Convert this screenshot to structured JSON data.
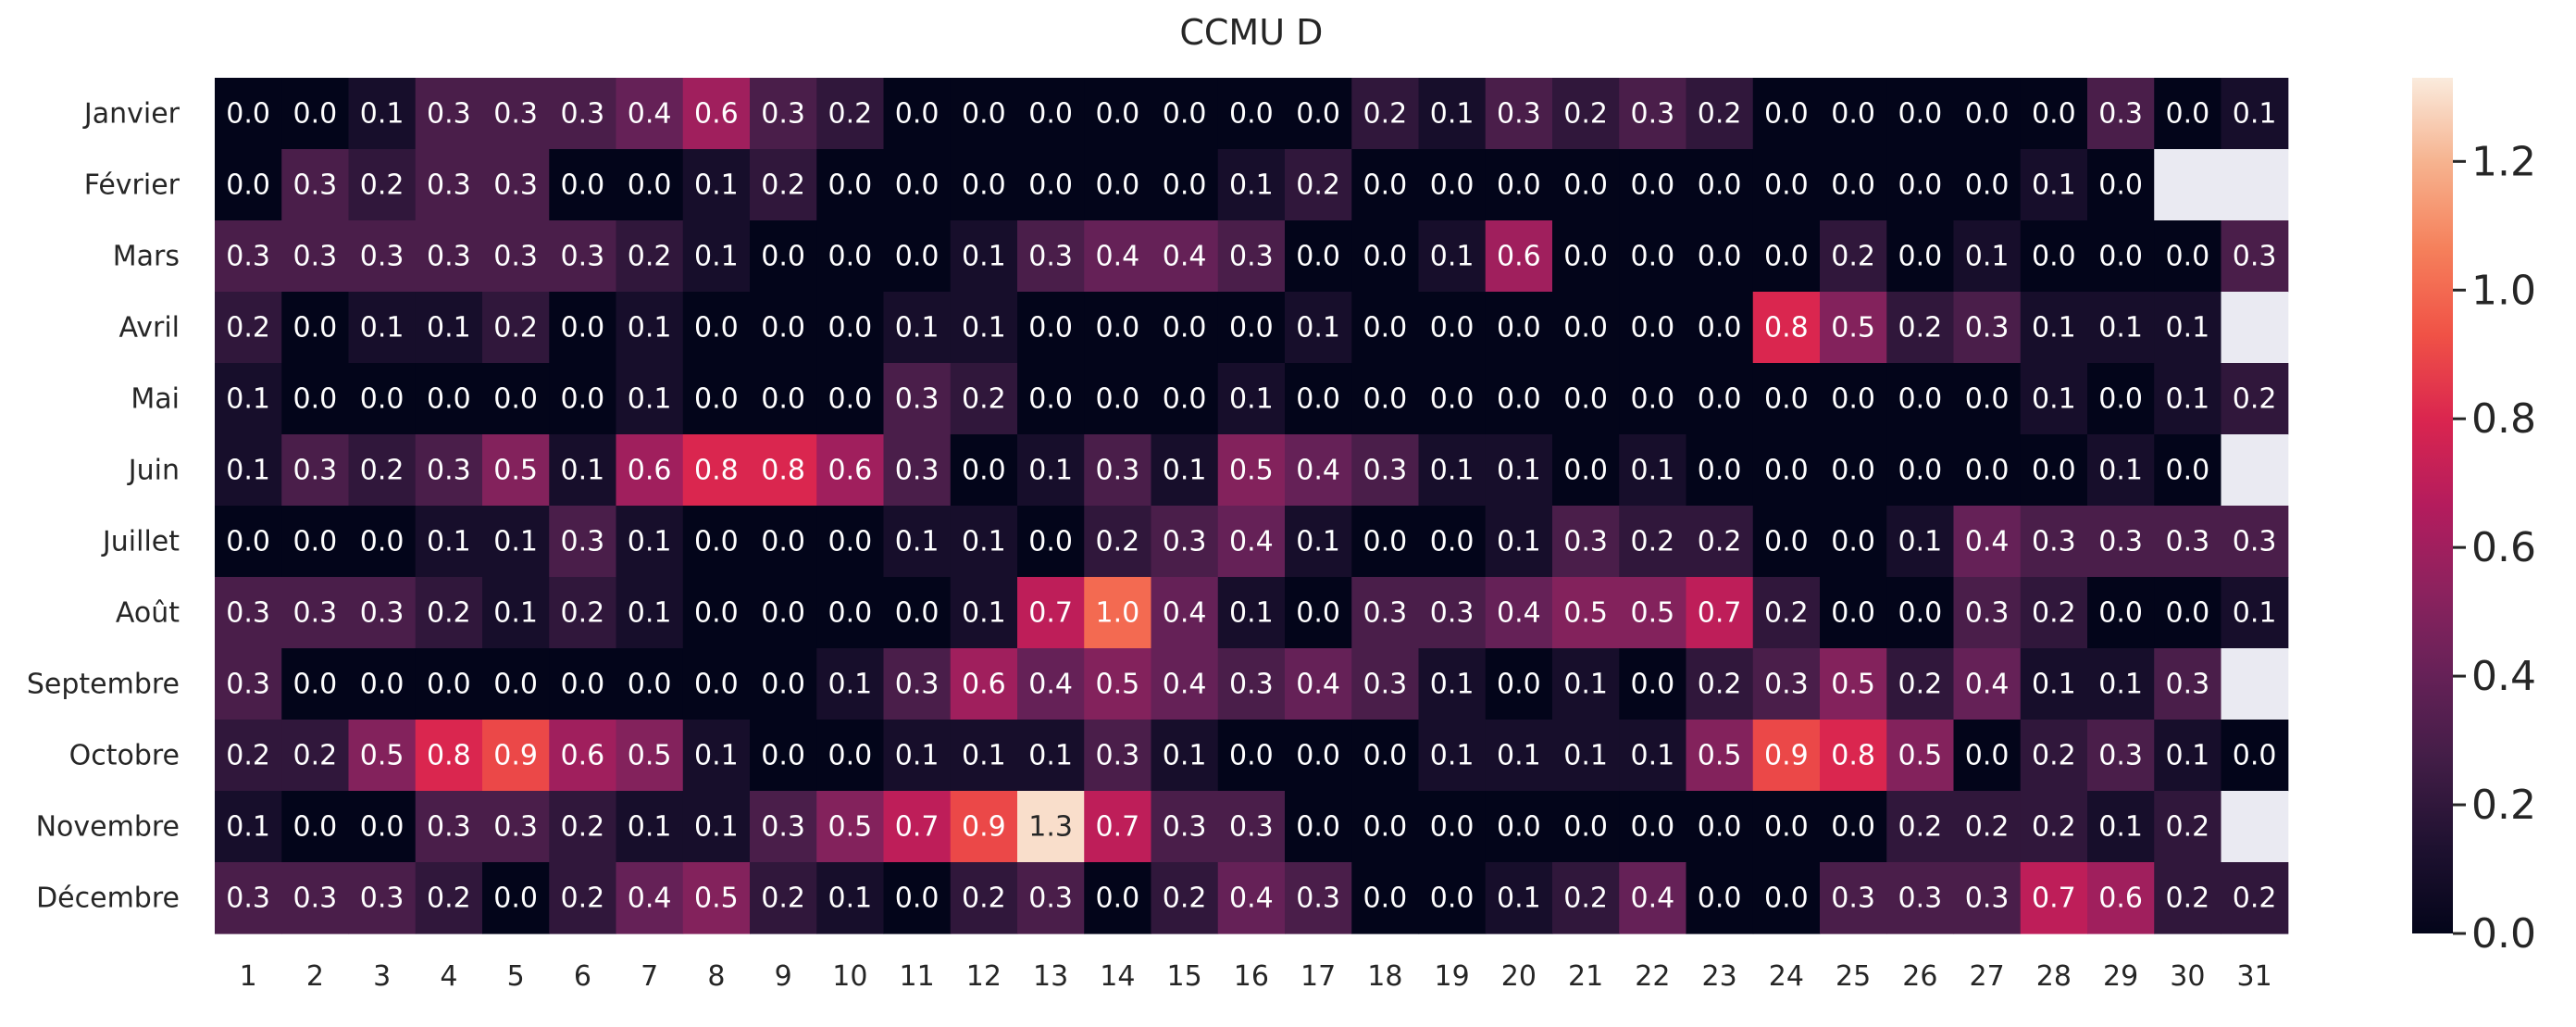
{
  "chart_data": {
    "type": "heatmap",
    "title": "CCMU D",
    "rows": [
      "Janvier",
      "Février",
      "Mars",
      "Avril",
      "Mai",
      "Juin",
      "Juillet",
      "Août",
      "Septembre",
      "Octobre",
      "Novembre",
      "Décembre"
    ],
    "columns": [
      "1",
      "2",
      "3",
      "4",
      "5",
      "6",
      "7",
      "8",
      "9",
      "10",
      "11",
      "12",
      "13",
      "14",
      "15",
      "16",
      "17",
      "18",
      "19",
      "20",
      "21",
      "22",
      "23",
      "24",
      "25",
      "26",
      "27",
      "28",
      "29",
      "30",
      "31"
    ],
    "values": [
      [
        0.0,
        0.0,
        0.1,
        0.3,
        0.3,
        0.3,
        0.4,
        0.6,
        0.3,
        0.2,
        0.0,
        0.0,
        0.0,
        0.0,
        0.0,
        0.0,
        0.0,
        0.2,
        0.1,
        0.3,
        0.2,
        0.3,
        0.2,
        0.0,
        0.0,
        0.0,
        0.0,
        0.0,
        0.3,
        0.0,
        0.1
      ],
      [
        0.0,
        0.3,
        0.2,
        0.3,
        0.3,
        0.0,
        0.0,
        0.1,
        0.2,
        0.0,
        0.0,
        0.0,
        0.0,
        0.0,
        0.0,
        0.1,
        0.2,
        0.0,
        0.0,
        0.0,
        0.0,
        0.0,
        0.0,
        0.0,
        0.0,
        0.0,
        0.0,
        0.1,
        0.0,
        null,
        null
      ],
      [
        0.3,
        0.3,
        0.3,
        0.3,
        0.3,
        0.3,
        0.2,
        0.1,
        0.0,
        0.0,
        0.0,
        0.1,
        0.3,
        0.4,
        0.4,
        0.3,
        0.0,
        0.0,
        0.1,
        0.6,
        0.0,
        0.0,
        0.0,
        0.0,
        0.2,
        0.0,
        0.1,
        0.0,
        0.0,
        0.0,
        0.3
      ],
      [
        0.2,
        0.0,
        0.1,
        0.1,
        0.2,
        0.0,
        0.1,
        0.0,
        0.0,
        0.0,
        0.1,
        0.1,
        0.0,
        0.0,
        0.0,
        0.0,
        0.1,
        0.0,
        0.0,
        0.0,
        0.0,
        0.0,
        0.0,
        0.8,
        0.5,
        0.2,
        0.3,
        0.1,
        0.1,
        0.1,
        null
      ],
      [
        0.1,
        0.0,
        0.0,
        0.0,
        0.0,
        0.0,
        0.1,
        0.0,
        0.0,
        0.0,
        0.3,
        0.2,
        0.0,
        0.0,
        0.0,
        0.1,
        0.0,
        0.0,
        0.0,
        0.0,
        0.0,
        0.0,
        0.0,
        0.0,
        0.0,
        0.0,
        0.0,
        0.1,
        0.0,
        0.1,
        0.2
      ],
      [
        0.1,
        0.3,
        0.2,
        0.3,
        0.5,
        0.1,
        0.6,
        0.8,
        0.8,
        0.6,
        0.3,
        0.0,
        0.1,
        0.3,
        0.1,
        0.5,
        0.4,
        0.3,
        0.1,
        0.1,
        0.0,
        0.1,
        0.0,
        0.0,
        0.0,
        0.0,
        0.0,
        0.0,
        0.1,
        0.0,
        null
      ],
      [
        0.0,
        0.0,
        0.0,
        0.1,
        0.1,
        0.3,
        0.1,
        0.0,
        0.0,
        0.0,
        0.1,
        0.1,
        0.0,
        0.2,
        0.3,
        0.4,
        0.1,
        0.0,
        0.0,
        0.1,
        0.3,
        0.2,
        0.2,
        0.0,
        0.0,
        0.1,
        0.4,
        0.3,
        0.3,
        0.3,
        0.3
      ],
      [
        0.3,
        0.3,
        0.3,
        0.2,
        0.1,
        0.2,
        0.1,
        0.0,
        0.0,
        0.0,
        0.0,
        0.1,
        0.7,
        1.0,
        0.4,
        0.1,
        0.0,
        0.3,
        0.3,
        0.4,
        0.5,
        0.5,
        0.7,
        0.2,
        0.0,
        0.0,
        0.3,
        0.2,
        0.0,
        0.0,
        0.1
      ],
      [
        0.3,
        0.0,
        0.0,
        0.0,
        0.0,
        0.0,
        0.0,
        0.0,
        0.0,
        0.1,
        0.3,
        0.6,
        0.4,
        0.5,
        0.4,
        0.3,
        0.4,
        0.3,
        0.1,
        0.0,
        0.1,
        0.0,
        0.2,
        0.3,
        0.5,
        0.2,
        0.4,
        0.1,
        0.1,
        0.3,
        null
      ],
      [
        0.2,
        0.2,
        0.5,
        0.8,
        0.9,
        0.6,
        0.5,
        0.1,
        0.0,
        0.0,
        0.1,
        0.1,
        0.1,
        0.3,
        0.1,
        0.0,
        0.0,
        0.0,
        0.1,
        0.1,
        0.1,
        0.1,
        0.5,
        0.9,
        0.8,
        0.5,
        0.0,
        0.2,
        0.3,
        0.1,
        0.0
      ],
      [
        0.1,
        0.0,
        0.0,
        0.3,
        0.3,
        0.2,
        0.1,
        0.1,
        0.3,
        0.5,
        0.7,
        0.9,
        1.3,
        0.7,
        0.3,
        0.3,
        0.0,
        0.0,
        0.0,
        0.0,
        0.0,
        0.0,
        0.0,
        0.0,
        0.0,
        0.2,
        0.2,
        0.2,
        0.1,
        0.2,
        null
      ],
      [
        0.3,
        0.3,
        0.3,
        0.2,
        0.0,
        0.2,
        0.4,
        0.5,
        0.2,
        0.1,
        0.0,
        0.2,
        0.3,
        0.0,
        0.2,
        0.4,
        0.3,
        0.0,
        0.0,
        0.1,
        0.2,
        0.4,
        0.0,
        0.0,
        0.3,
        0.3,
        0.3,
        0.7,
        0.6,
        0.2,
        0.2
      ]
    ],
    "value_range": [
      0.0,
      1.33
    ],
    "colormap": "rocket",
    "missing_color": "#eaeaf2",
    "colorbar_ticks": [
      {
        "value": 0.0,
        "label": "0.0"
      },
      {
        "value": 0.2,
        "label": "0.2"
      },
      {
        "value": 0.4,
        "label": "0.4"
      },
      {
        "value": 0.6,
        "label": "0.6"
      },
      {
        "value": 0.8,
        "label": "0.8"
      },
      {
        "value": 1.0,
        "label": "1.0"
      },
      {
        "value": 1.2,
        "label": "1.2"
      }
    ],
    "legend": "right"
  }
}
